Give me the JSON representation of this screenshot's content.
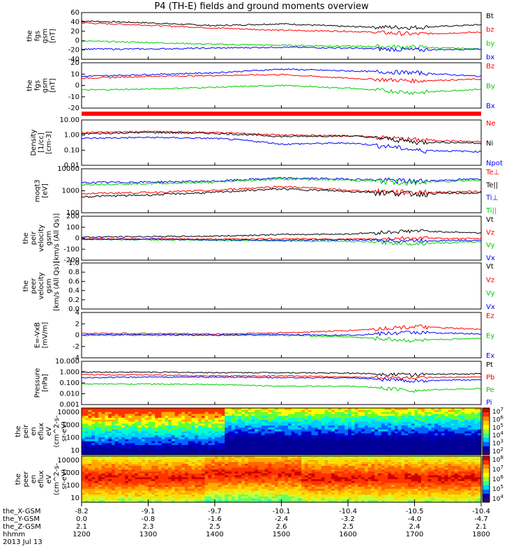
{
  "title": "P4 (TH-E) fields and ground moments overview",
  "footer": {
    "rows": [
      {
        "name": "the_X-GSM",
        "values": [
          "-8.2",
          "-9.1",
          "-9.7",
          "-10.1",
          "-10.4",
          "-10.5",
          "-10.4"
        ]
      },
      {
        "name": "the_Y-GSM",
        "values": [
          "0.0",
          "-0.8",
          "-1.6",
          "-2.4",
          "-3.2",
          "-4.0",
          "-4.7"
        ]
      },
      {
        "name": "the_Z-GSM",
        "values": [
          "2.1",
          "2.3",
          "2.5",
          "2.6",
          "2.5",
          "2.4",
          "2.1"
        ]
      },
      {
        "name": "hhmm",
        "values": [
          "1200",
          "1300",
          "1400",
          "1500",
          "1600",
          "1700",
          "1800"
        ]
      }
    ],
    "date": "2013 Jul 13"
  },
  "colors": {
    "black": "#000000",
    "red": "#ff0000",
    "green": "#00cc00",
    "blue": "#0000ff"
  },
  "chart_data": [
    {
      "type": "line",
      "ylabel": [
        "the",
        "fgs",
        "gsm",
        "[nT]"
      ],
      "yticks": [
        "60",
        "40",
        "20",
        "0",
        "-20",
        "-40"
      ],
      "ylim": [
        -40,
        60
      ],
      "legend": [
        {
          "label": "Bt",
          "color": "#000000"
        },
        {
          "label": "bz",
          "color": "#ff0000"
        },
        {
          "label": "by",
          "color": "#00cc00"
        },
        {
          "label": "bx",
          "color": "#0000ff"
        }
      ],
      "series": [
        {
          "name": "Bt",
          "color": "#000000",
          "x": [
            1200,
            1300,
            1400,
            1500,
            1600,
            1700,
            1800
          ],
          "y": [
            42,
            38,
            32,
            36,
            30,
            28,
            34
          ]
        },
        {
          "name": "bz",
          "color": "#ff0000",
          "x": [
            1200,
            1300,
            1400,
            1500,
            1600,
            1700,
            1800
          ],
          "y": [
            38,
            33,
            27,
            22,
            20,
            14,
            18
          ]
        },
        {
          "name": "by",
          "color": "#00cc00",
          "x": [
            1200,
            1300,
            1400,
            1500,
            1600,
            1700,
            1800
          ],
          "y": [
            -1,
            -4,
            -8,
            -10,
            -12,
            -14,
            -18
          ]
        },
        {
          "name": "bx",
          "color": "#0000ff",
          "x": [
            1200,
            1300,
            1400,
            1500,
            1600,
            1700,
            1800
          ],
          "y": [
            -18,
            -18,
            -16,
            -14,
            -16,
            -20,
            -18
          ]
        }
      ]
    },
    {
      "type": "line",
      "ylabel": [
        "the",
        "fgs",
        "gsm",
        "[nT]"
      ],
      "yticks": [
        "20",
        "10",
        "0",
        "-10",
        "-20"
      ],
      "ylim": [
        -25,
        25
      ],
      "legend": [
        {
          "label": "Bz",
          "color": "#ff0000"
        },
        {
          "label": "By",
          "color": "#00cc00"
        },
        {
          "label": "Bx",
          "color": "#0000ff"
        }
      ],
      "series": [
        {
          "name": "Bz",
          "color": "#ff0000",
          "x": [
            1200,
            1300,
            1400,
            1500,
            1600,
            1700,
            1800
          ],
          "y": [
            8,
            10,
            11,
            12,
            8,
            5,
            7
          ]
        },
        {
          "name": "By",
          "color": "#00cc00",
          "x": [
            1200,
            1300,
            1400,
            1500,
            1600,
            1700,
            1800
          ],
          "y": [
            -5,
            -4,
            -2,
            0,
            -3,
            -8,
            -4
          ]
        },
        {
          "name": "Bx",
          "color": "#0000ff",
          "x": [
            1200,
            1300,
            1400,
            1500,
            1600,
            1700,
            1800
          ],
          "y": [
            10,
            12,
            14,
            18,
            16,
            14,
            10
          ]
        }
      ]
    },
    {
      "type": "bar",
      "note": "red status bar",
      "ylabel": [],
      "yticks": [],
      "legend": [],
      "series": []
    },
    {
      "type": "line",
      "log": true,
      "ylabel": [
        "Density",
        "[1/cc]",
        "[cm-3]"
      ],
      "yticks": [
        "10.00",
        "1.00",
        "0.10",
        "0.01"
      ],
      "ylim": [
        0.01,
        10
      ],
      "legend": [
        {
          "label": "Ne",
          "color": "#ff0000"
        },
        {
          "label": "Ni",
          "color": "#000000"
        },
        {
          "label": "Npot",
          "color": "#0000ff"
        }
      ],
      "series": [
        {
          "name": "Ne",
          "color": "#ff0000",
          "x": [
            1200,
            1300,
            1400,
            1500,
            1600,
            1700,
            1800
          ],
          "y": [
            1.5,
            1.7,
            1.5,
            1.0,
            0.9,
            0.5,
            0.35
          ]
        },
        {
          "name": "Ni",
          "color": "#000000",
          "x": [
            1200,
            1300,
            1400,
            1500,
            1600,
            1700,
            1800
          ],
          "y": [
            1.2,
            1.5,
            1.3,
            0.8,
            0.9,
            0.35,
            0.3
          ]
        },
        {
          "name": "Npot",
          "color": "#0000ff",
          "x": [
            1200,
            1300,
            1400,
            1500,
            1600,
            1700,
            1800
          ],
          "y": [
            0.6,
            0.7,
            0.6,
            0.25,
            0.3,
            0.1,
            0.08
          ]
        }
      ]
    },
    {
      "type": "line",
      "log": true,
      "ylabel": [
        "moqt3",
        "[eV]"
      ],
      "yticks": [
        "10000",
        "1000",
        "100"
      ],
      "ylim": [
        50,
        15000
      ],
      "legend": [
        {
          "label": "Te⊥",
          "color": "#ff0000"
        },
        {
          "label": "Te||",
          "color": "#000000"
        },
        {
          "label": "Ti⊥",
          "color": "#0000ff"
        },
        {
          "label": "Ti||",
          "color": "#00cc00"
        }
      ],
      "series": [
        {
          "name": "Te⊥",
          "color": "#ff0000",
          "x": [
            1200,
            1300,
            1400,
            1500,
            1600,
            1700,
            1800
          ],
          "y": [
            600,
            700,
            900,
            1500,
            900,
            700,
            800
          ]
        },
        {
          "name": "Te||",
          "color": "#000000",
          "x": [
            1200,
            1300,
            1400,
            1500,
            1600,
            1700,
            1800
          ],
          "y": [
            400,
            500,
            700,
            1100,
            800,
            600,
            650
          ]
        },
        {
          "name": "Ti⊥",
          "color": "#0000ff",
          "x": [
            1200,
            1300,
            1400,
            1500,
            1600,
            1700,
            1800
          ],
          "y": [
            2500,
            2700,
            3000,
            4500,
            4000,
            3000,
            4000
          ]
        },
        {
          "name": "Ti||",
          "color": "#00cc00",
          "x": [
            1200,
            1300,
            1400,
            1500,
            1600,
            1700,
            1800
          ],
          "y": [
            2000,
            2200,
            2600,
            4000,
            3500,
            2500,
            3500
          ]
        }
      ]
    },
    {
      "type": "line",
      "ylabel": [
        "the",
        "peir",
        "velocity",
        "gsm",
        "[km/s (All Qs)]"
      ],
      "yticks": [
        "200",
        "100",
        "0",
        "-100",
        "-200"
      ],
      "ylim": [
        -200,
        220
      ],
      "legend": [
        {
          "label": "Vt",
          "color": "#000000"
        },
        {
          "label": "Vz",
          "color": "#ff0000"
        },
        {
          "label": "Vy",
          "color": "#00cc00"
        },
        {
          "label": "Vx",
          "color": "#0000ff"
        }
      ],
      "series": [
        {
          "name": "Vt",
          "color": "#000000",
          "x": [
            1200,
            1300,
            1400,
            1500,
            1600,
            1700,
            1800
          ],
          "y": [
            20,
            25,
            30,
            45,
            50,
            80,
            60
          ]
        },
        {
          "name": "Vz",
          "color": "#ff0000",
          "x": [
            1200,
            1300,
            1400,
            1500,
            1600,
            1700,
            1800
          ],
          "y": [
            5,
            5,
            0,
            5,
            0,
            10,
            5
          ]
        },
        {
          "name": "Vy",
          "color": "#00cc00",
          "x": [
            1200,
            1300,
            1400,
            1500,
            1600,
            1700,
            1800
          ],
          "y": [
            0,
            -5,
            -10,
            -15,
            -20,
            -40,
            -25
          ]
        },
        {
          "name": "Vx",
          "color": "#0000ff",
          "x": [
            1200,
            1300,
            1400,
            1500,
            1600,
            1700,
            1800
          ],
          "y": [
            0,
            0,
            -5,
            -10,
            -5,
            -15,
            -10
          ]
        }
      ]
    },
    {
      "type": "line",
      "ylabel": [
        "the",
        "peer",
        "velocity",
        "gsm",
        "[km/s (All Qs)]"
      ],
      "yticks": [
        "1.0",
        "0.8",
        "0.6",
        "0.4",
        "0.2",
        "0.0"
      ],
      "ylim": [
        0,
        1
      ],
      "legend": [
        {
          "label": "Vt",
          "color": "#000000"
        },
        {
          "label": "Vz",
          "color": "#ff0000"
        },
        {
          "label": "Vy",
          "color": "#00cc00"
        },
        {
          "label": "Vx",
          "color": "#0000ff"
        }
      ],
      "series": []
    },
    {
      "type": "line",
      "ylabel": [
        "E=-VxB",
        "[mV/m]"
      ],
      "yticks": [
        "4",
        "2",
        "0",
        "-2",
        "-4"
      ],
      "ylim": [
        -4,
        4
      ],
      "legend": [
        {
          "label": "Ez",
          "color": "#ff0000"
        },
        {
          "label": "Ey",
          "color": "#00cc00"
        },
        {
          "label": "Ex",
          "color": "#0000ff"
        }
      ],
      "series": [
        {
          "name": "Ez",
          "color": "#ff0000",
          "x": [
            1200,
            1300,
            1400,
            1500,
            1600,
            1700,
            1800
          ],
          "y": [
            0.3,
            0.3,
            0.2,
            0.4,
            0.8,
            1.5,
            1.0
          ]
        },
        {
          "name": "Ey",
          "color": "#00cc00",
          "x": [
            1200,
            1300,
            1400,
            1500,
            1600,
            1700,
            1800
          ],
          "y": [
            0,
            0,
            0,
            0,
            -0.3,
            -1.0,
            -0.5
          ]
        },
        {
          "name": "Ex",
          "color": "#0000ff",
          "x": [
            1200,
            1300,
            1400,
            1500,
            1600,
            1700,
            1800
          ],
          "y": [
            0.1,
            0.1,
            0,
            0.1,
            0,
            0.5,
            0.2
          ]
        }
      ]
    },
    {
      "type": "line",
      "log": true,
      "ylabel": [
        "Pressure",
        "[nPa]"
      ],
      "yticks": [
        "10.000",
        "1.000",
        "0.100",
        "0.010",
        "0.001"
      ],
      "ylim": [
        0.001,
        10
      ],
      "legend": [
        {
          "label": "Pt",
          "color": "#000000"
        },
        {
          "label": "Pb",
          "color": "#ff0000"
        },
        {
          "label": "Pe",
          "color": "#00cc00"
        },
        {
          "label": "Pi",
          "color": "#0000ff"
        }
      ],
      "series": [
        {
          "name": "Pt",
          "color": "#000000",
          "x": [
            1200,
            1300,
            1400,
            1500,
            1600,
            1700,
            1800
          ],
          "y": [
            1.0,
            1.0,
            0.9,
            0.9,
            0.8,
            0.6,
            0.7
          ]
        },
        {
          "name": "Pb",
          "color": "#ff0000",
          "x": [
            1200,
            1300,
            1400,
            1500,
            1600,
            1700,
            1800
          ],
          "y": [
            0.6,
            0.55,
            0.45,
            0.45,
            0.35,
            0.3,
            0.35
          ]
        },
        {
          "name": "Pe",
          "color": "#00cc00",
          "x": [
            1200,
            1300,
            1400,
            1500,
            1600,
            1700,
            1800
          ],
          "y": [
            0.08,
            0.08,
            0.07,
            0.05,
            0.05,
            0.02,
            0.03
          ]
        },
        {
          "name": "Pi",
          "color": "#0000ff",
          "x": [
            1200,
            1300,
            1400,
            1500,
            1600,
            1700,
            1800
          ],
          "y": [
            0.3,
            0.35,
            0.35,
            0.3,
            0.3,
            0.15,
            0.2
          ]
        }
      ]
    },
    {
      "type": "heatmap",
      "ylabel": [
        "the",
        "peir",
        "en",
        "eflux",
        "eV",
        "(cm^2-s-",
        "sr-eV)"
      ],
      "yticks": [
        "10000",
        "1000",
        "100",
        "10"
      ],
      "colorbar": [
        "10^7",
        "10^6",
        "10^5",
        "10^4",
        "10^3",
        "10^2"
      ]
    },
    {
      "type": "heatmap",
      "ylabel": [
        "the",
        "peer",
        "en",
        "eflux",
        "eV",
        "(cm^2-s-",
        "sr-eV)"
      ],
      "yticks": [
        "10000",
        "1000",
        "100",
        "10"
      ],
      "colorbar": [
        "10^8",
        "10^7",
        "10^6",
        "10^5",
        "10^4"
      ]
    }
  ]
}
